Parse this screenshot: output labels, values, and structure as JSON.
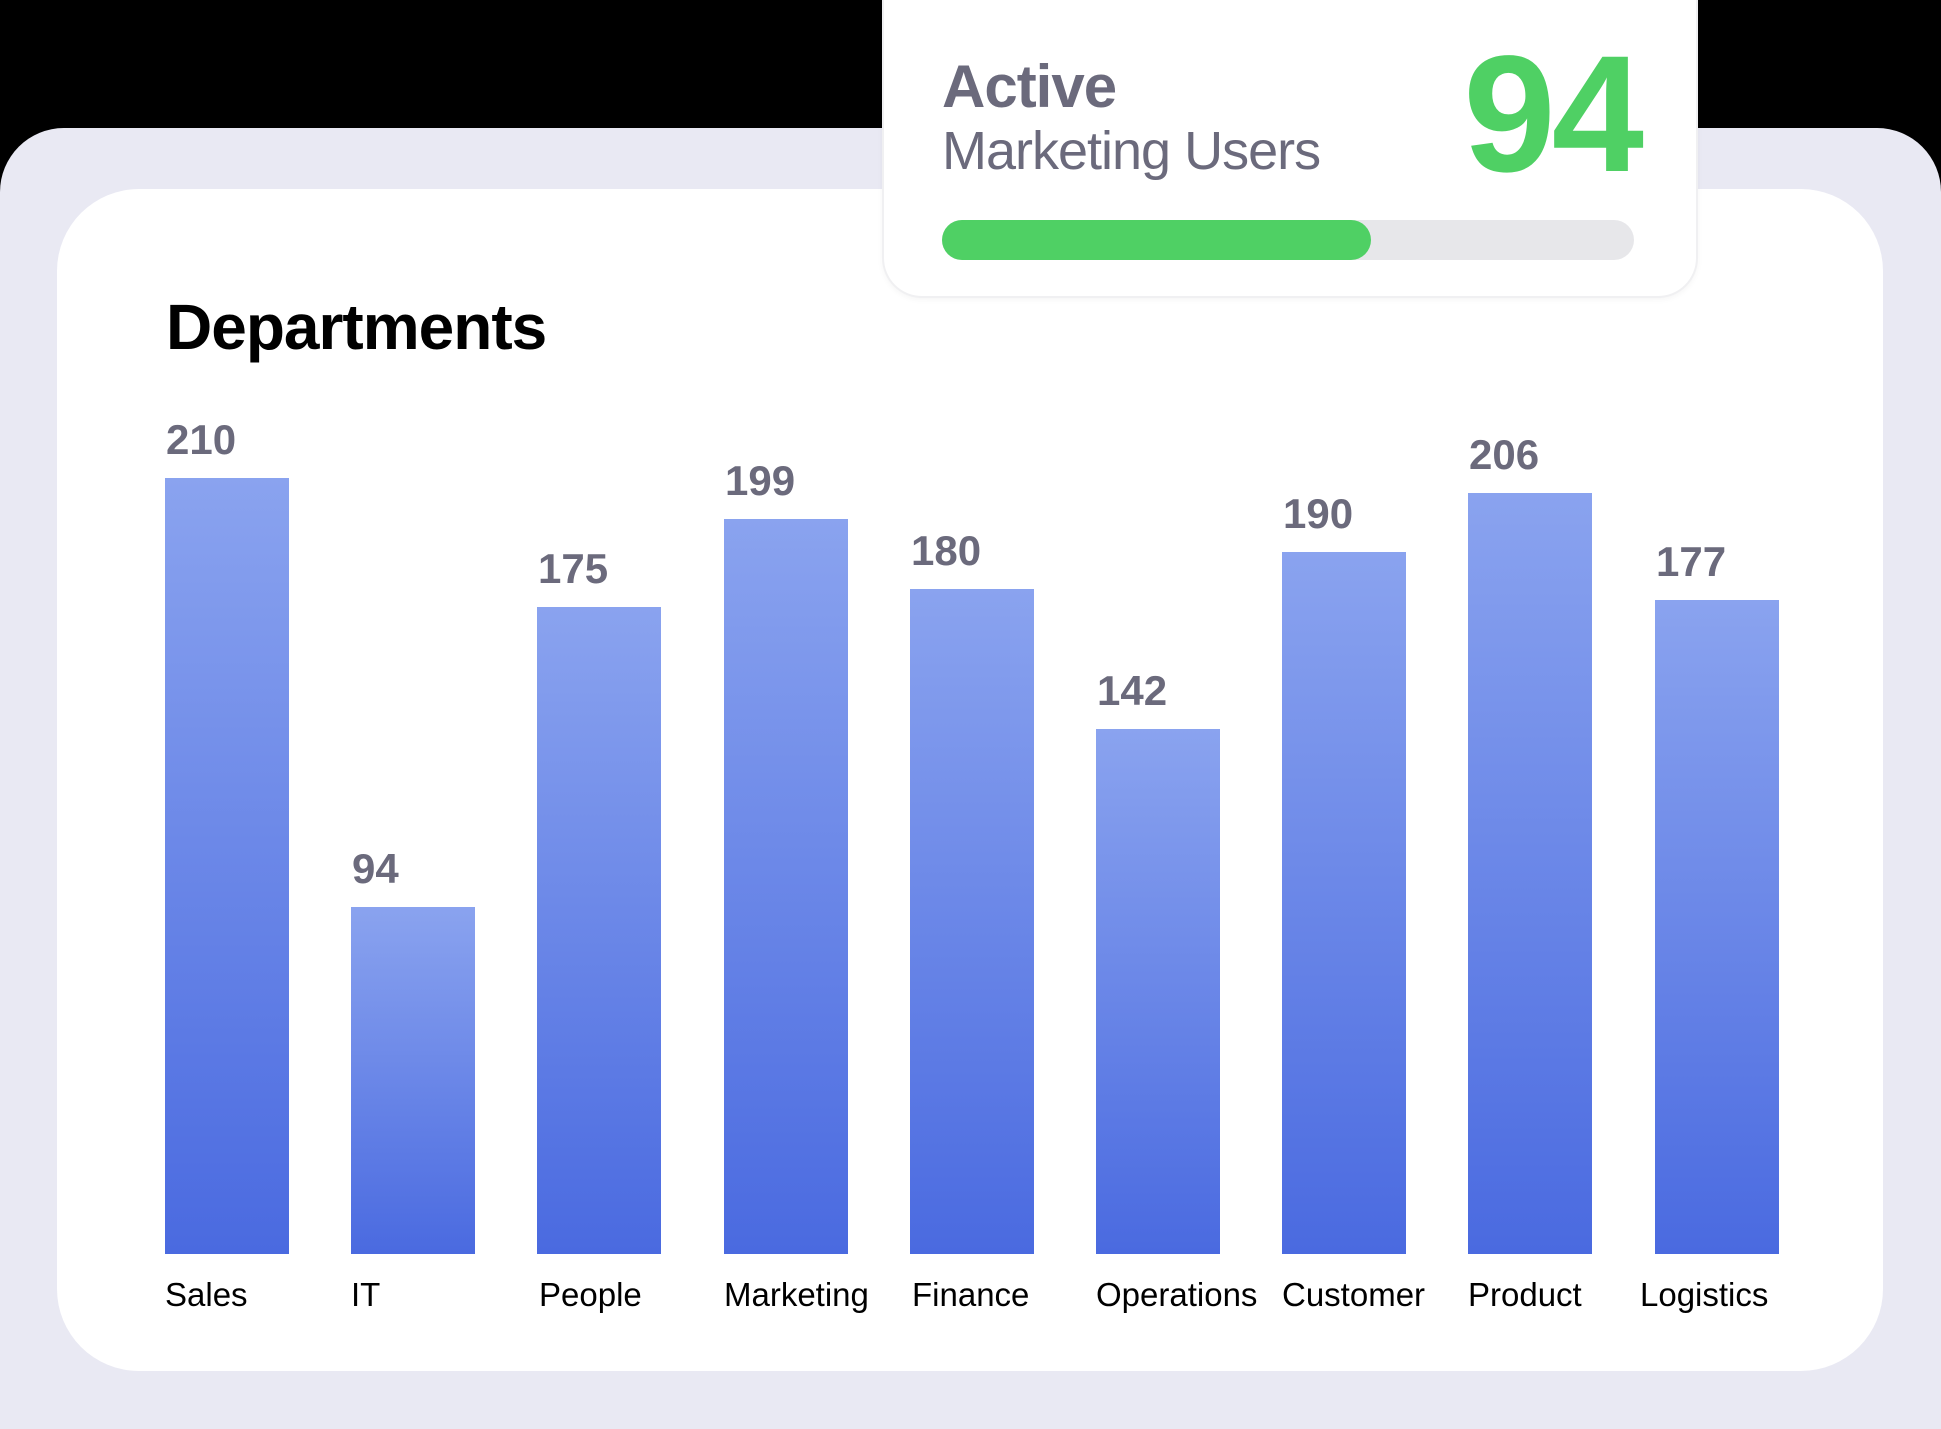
{
  "card": {
    "title": "Departments"
  },
  "active_widget": {
    "title": "Active",
    "subtitle": "Marketing Users",
    "value": "94",
    "progress_pct": 62,
    "accent_color": "#4fd064",
    "track_color": "#e7e7ea"
  },
  "colors": {
    "bar_top": "#8aa3ef",
    "bar_bottom": "#4a6ae0",
    "value_label": "#6b6a7c",
    "background_panel": "#e9e9f3"
  },
  "chart_data": {
    "type": "bar",
    "title": "Departments",
    "xlabel": "",
    "ylabel": "",
    "categories": [
      "Sales",
      "IT",
      "People",
      "Marketing",
      "Finance",
      "Operations",
      "Customer",
      "Product",
      "Logistics"
    ],
    "values": [
      210,
      94,
      175,
      199,
      180,
      142,
      190,
      206,
      177
    ],
    "ylim": [
      0,
      210
    ],
    "grid": false,
    "legend": "none",
    "data_labels": true
  }
}
